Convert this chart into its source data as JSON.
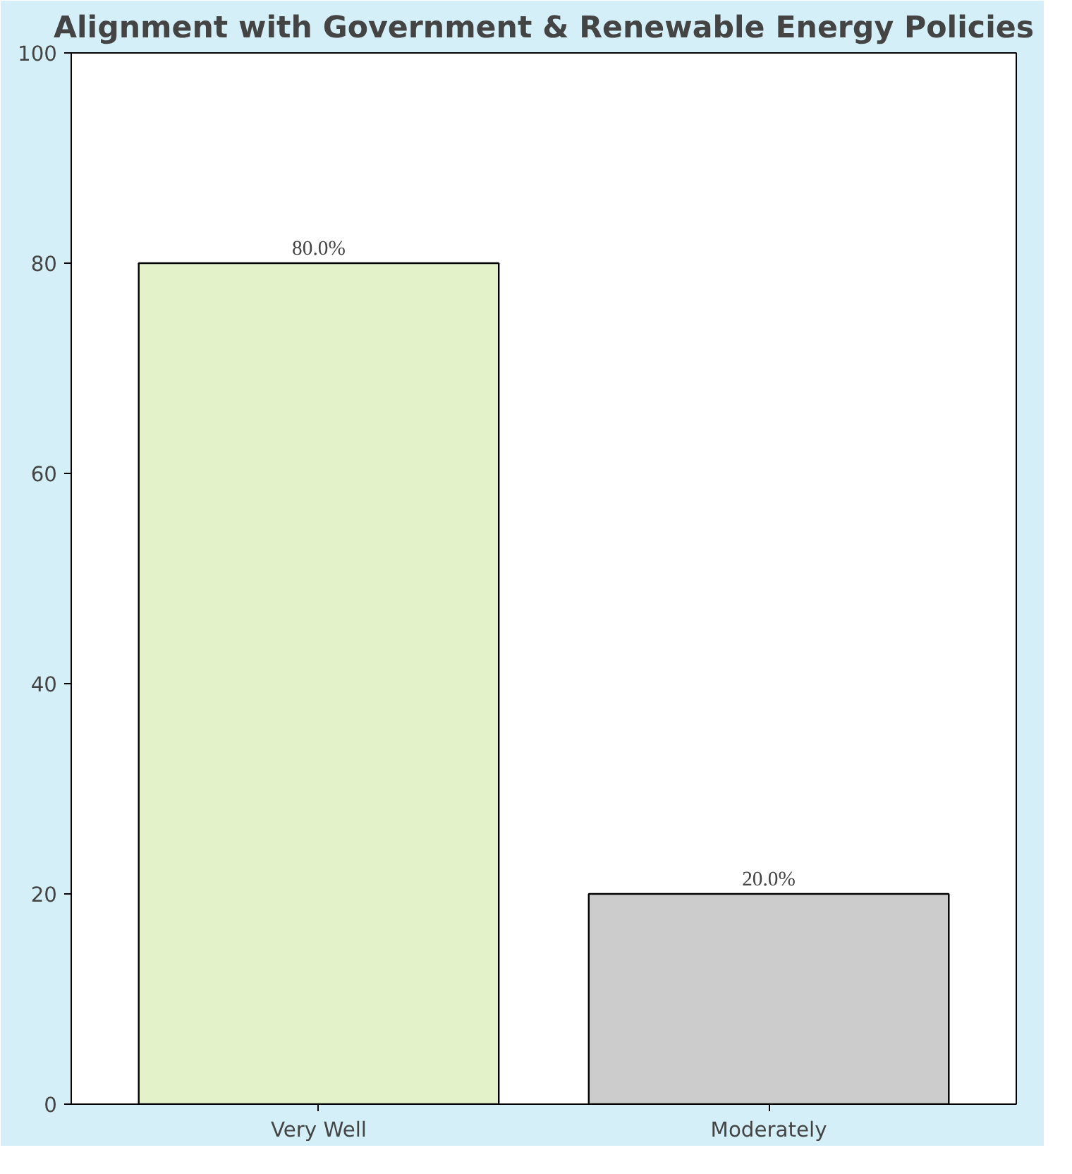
{
  "chart_data": {
    "type": "bar",
    "title": "Alignment with Government & Renewable Energy Policies",
    "categories": [
      "Very Well",
      "Moderately"
    ],
    "values": [
      80,
      20
    ],
    "colors": [
      "#e3f2c8",
      "#cccccc"
    ],
    "value_labels": [
      "80.0%",
      "20.0%"
    ],
    "ylim": [
      0,
      100
    ],
    "yticks": [
      0,
      20,
      40,
      60,
      80,
      100
    ],
    "grid": false
  }
}
